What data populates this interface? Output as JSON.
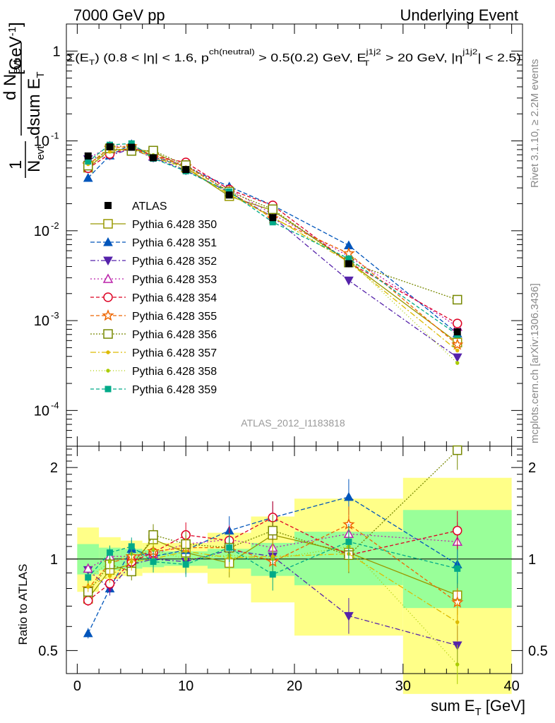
{
  "header": {
    "left": "7000 GeV pp",
    "right": "Underlying Event"
  },
  "side_labels": {
    "rivet": "Rivet 3.1.10, ≥ 2.2M events",
    "mcplots": "mcplots.cern.ch [arXiv:1306.3436]"
  },
  "chart_data": {
    "type": "scatter",
    "title": "Σ(E_T) (0.8 < |η| < 1.6, p^ch(neutral) > 0.5(0.2) GeV, E_T^j1j2 > 20 GeV, |η^j1j2| < 2.5)",
    "analysis_label": "ATLAS_2012_I1183818",
    "xlabel": "sum E_T [GeV]",
    "ylabel_main": "1/N_evt dN_evt/dsum E_T [GeV^-1]",
    "ylabel_ratio": "Ratio to ATLAS",
    "xlim": [
      -1,
      41
    ],
    "ylim_main": [
      4e-05,
      2
    ],
    "ylim_ratio": [
      0.42,
      2.35
    ],
    "log_y_main": true,
    "x_ticks": [
      "0",
      "10",
      "20",
      "30",
      "40"
    ],
    "y_ticks_main": [
      "1",
      "10^-1",
      "10^-2",
      "10^-3",
      "10^-4"
    ],
    "y_ticks_ratio": [
      "0.5",
      "1",
      "2"
    ],
    "bin_edges": [
      0,
      2,
      4,
      6,
      8,
      12,
      16,
      20,
      30,
      40
    ],
    "x": [
      1,
      3,
      5,
      7,
      10,
      14,
      18,
      25,
      35
    ],
    "data": {
      "name": "ATLAS",
      "values": [
        0.068,
        0.086,
        0.085,
        0.065,
        0.048,
        0.025,
        0.014,
        0.0043,
        0.00075
      ]
    },
    "band_green_ratio": [
      [
        0.89,
        1.12
      ],
      [
        0.92,
        1.09
      ],
      [
        0.93,
        1.08
      ],
      [
        0.94,
        1.07
      ],
      [
        0.95,
        1.06
      ],
      [
        0.93,
        1.08
      ],
      [
        0.88,
        1.13
      ],
      [
        0.82,
        1.23
      ],
      [
        0.69,
        1.45
      ]
    ],
    "band_yellow_ratio": [
      [
        0.78,
        1.27
      ],
      [
        0.86,
        1.18
      ],
      [
        0.88,
        1.15
      ],
      [
        0.9,
        1.13
      ],
      [
        0.9,
        1.13
      ],
      [
        0.83,
        1.22
      ],
      [
        0.72,
        1.38
      ],
      [
        0.56,
        1.58
      ],
      [
        0.36,
        1.85
      ]
    ],
    "series": [
      {
        "name": "Pythia 6.428 350",
        "color": "#999900",
        "marker": "square-open",
        "dash": "",
        "ratio": [
          0.74,
          0.92,
          0.96,
          1.16,
          1.05,
          0.97,
          1.2,
          1.05,
          0.76
        ]
      },
      {
        "name": "Pythia 6.428 351",
        "color": "#0055bb",
        "marker": "triangle-up-filled",
        "dash": "6,3",
        "ratio": [
          0.57,
          0.8,
          1.08,
          1.02,
          1.07,
          1.24,
          1.37,
          1.6,
          0.96
        ]
      },
      {
        "name": "Pythia 6.428 352",
        "color": "#5522aa",
        "marker": "triangle-down-filled",
        "dash": "7,3,2,3",
        "ratio": [
          0.92,
          0.8,
          0.96,
          1.0,
          0.98,
          1.07,
          1.02,
          0.65,
          0.52
        ]
      },
      {
        "name": "Pythia 6.428 353",
        "color": "#bb22aa",
        "marker": "triangle-up-open",
        "dash": "2,3",
        "ratio": [
          0.93,
          1.02,
          1.02,
          1.04,
          1.12,
          1.16,
          1.09,
          1.21,
          1.14
        ]
      },
      {
        "name": "Pythia 6.428 354",
        "color": "#dd0022",
        "marker": "circle-open",
        "dash": "5,3",
        "ratio": [
          0.73,
          0.83,
          0.98,
          1.05,
          1.2,
          1.15,
          1.37,
          1.03,
          1.24
        ]
      },
      {
        "name": "Pythia 6.428 355",
        "color": "#ee6600",
        "marker": "star-open",
        "dash": "5,3",
        "ratio": [
          0.8,
          0.97,
          1.02,
          1.06,
          1.09,
          1.09,
          0.98,
          1.3,
          0.72
        ]
      },
      {
        "name": "Pythia 6.428 356",
        "color": "#778800",
        "marker": "square-open",
        "dash": "2,2",
        "ratio": [
          0.78,
          0.96,
          0.91,
          1.2,
          1.12,
          1.09,
          1.24,
          1.03,
          2.28
        ]
      },
      {
        "name": "Pythia 6.428 357",
        "color": "#ddbb00",
        "marker": "dot",
        "dash": "8,3,2,3",
        "ratio": [
          0.81,
          0.88,
          0.98,
          1.0,
          1.06,
          1.01,
          1.02,
          1.04,
          0.62
        ]
      },
      {
        "name": "Pythia 6.428 358",
        "color": "#aacc00",
        "marker": "dot",
        "dash": "1,3",
        "ratio": [
          0.86,
          0.98,
          1.04,
          1.07,
          1.0,
          1.03,
          1.0,
          1.1,
          0.45
        ]
      },
      {
        "name": "Pythia 6.428 359",
        "color": "#00aa88",
        "marker": "square-filled",
        "dash": "5,3",
        "ratio": [
          0.87,
          1.05,
          1.1,
          0.98,
          0.96,
          1.09,
          0.89,
          1.14,
          0.93
        ]
      }
    ]
  }
}
